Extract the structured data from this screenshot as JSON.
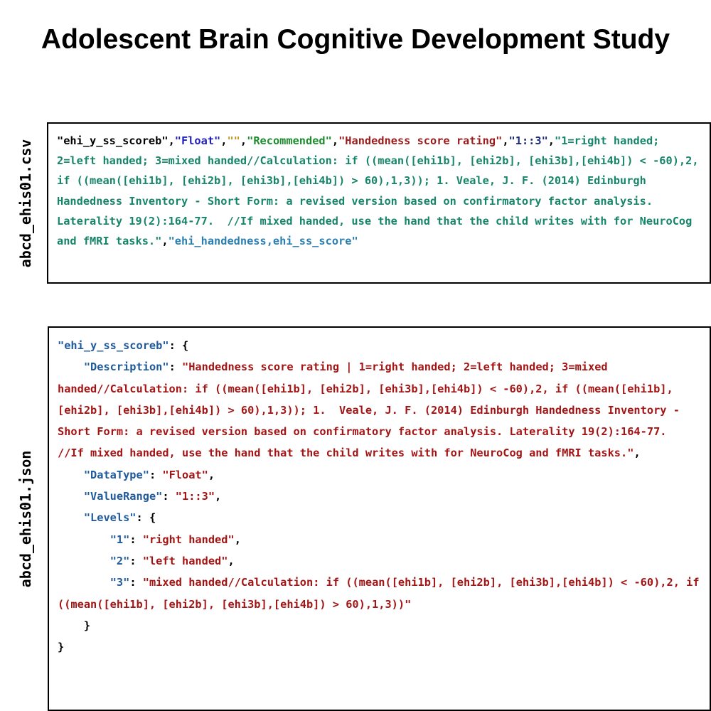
{
  "page": {
    "title": "Adolescent Brain Cognitive Development Study"
  },
  "csv_section": {
    "label": "abcd_ehis01.csv",
    "tokens": [
      {
        "text": "\"ehi_y_ss_scoreb\"",
        "color": "#000000"
      },
      {
        "text": ",",
        "color": "#000000"
      },
      {
        "text": "\"Float\"",
        "color": "#1f1fbf"
      },
      {
        "text": ",",
        "color": "#000000"
      },
      {
        "text": "\"\"",
        "color": "#c09a1c"
      },
      {
        "text": ",",
        "color": "#000000"
      },
      {
        "text": "\"Recommended\"",
        "color": "#1e8c2e"
      },
      {
        "text": ",",
        "color": "#000000"
      },
      {
        "text": "\"Handedness score rating\"",
        "color": "#991b1b"
      },
      {
        "text": ",",
        "color": "#000000"
      },
      {
        "text": "\"1::3\"",
        "color": "#1c2a7a"
      },
      {
        "text": ",",
        "color": "#000000"
      },
      {
        "text": "\"1=right handed; 2=left handed; 3=mixed handed//Calculation: if ((mean([ehi1b], [ehi2b], [ehi3b],[ehi4b]) < -60),2, if ((mean([ehi1b], [ehi2b], [ehi3b],[ehi4b]) > 60),1,3)); 1. Veale, J. F. (2014) Edinburgh Handedness Inventory - Short Form: a revised version based on confirmatory factor analysis. Laterality 19(2):164-77.  //If mixed handed, use the hand that the child writes with for NeuroCog and fMRI tasks.\"",
        "color": "#17856a"
      },
      {
        "text": ",",
        "color": "#000000"
      },
      {
        "text": "\"ehi_handedness,ehi_ss_score\"",
        "color": "#2a7fb0"
      }
    ]
  },
  "json_section": {
    "label": "abcd_ehis01.json",
    "root_key": "\"ehi_y_ss_scoreb\"",
    "description_key": "\"Description\"",
    "description_value": "\"Handedness score rating | 1=right handed; 2=left handed; 3=mixed handed//Calculation: if ((mean([ehi1b], [ehi2b], [ehi3b],[ehi4b]) < -60),2, if ((mean([ehi1b], [ehi2b], [ehi3b],[ehi4b]) > 60),1,3)); 1.  Veale, J. F. (2014) Edinburgh Handedness Inventory - Short Form: a revised version based on confirmatory factor analysis. Laterality 19(2):164-77.  //If mixed handed, use the hand that the child writes with for NeuroCog and fMRI tasks.\"",
    "datatype_key": "\"DataType\"",
    "datatype_value": "\"Float\"",
    "valuerange_key": "\"ValueRange\"",
    "valuerange_value": "\"1::3\"",
    "levels_key": "\"Levels\"",
    "levels": [
      {
        "key": "\"1\"",
        "value": "\"right handed\""
      },
      {
        "key": "\"2\"",
        "value": "\"left handed\""
      },
      {
        "key": "\"3\"",
        "value": "\"mixed handed//Calculation: if ((mean([ehi1b], [ehi2b], [ehi3b],[ehi4b]) < -60),2, if ((mean([ehi1b], [ehi2b], [ehi3b],[ehi4b]) > 60),1,3))\""
      }
    ],
    "colors": {
      "key": "#1f5a9c",
      "string": "#a31515",
      "punctuation": "#000000"
    }
  }
}
